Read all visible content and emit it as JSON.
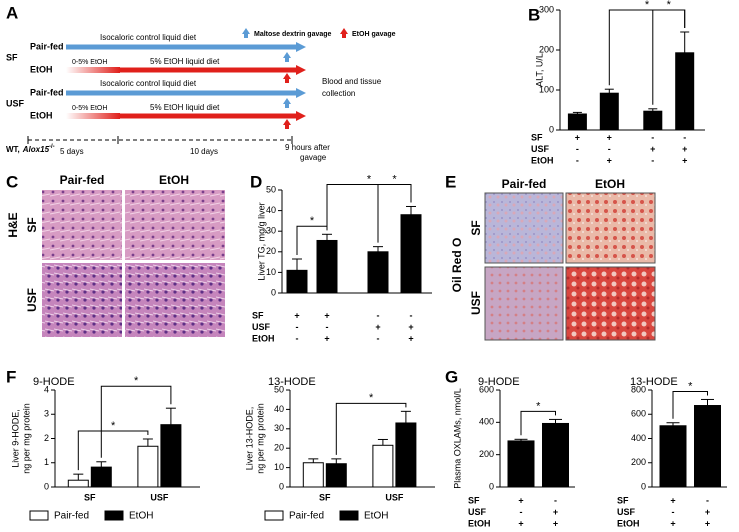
{
  "panel_labels": [
    "A",
    "B",
    "C",
    "D",
    "E",
    "F",
    "G"
  ],
  "diagram": {
    "groups": [
      {
        "label": "SF",
        "arms": [
          {
            "name": "Pair-fed",
            "diet": "Isocaloric control liquid diet"
          },
          {
            "name": "EtOH",
            "ramp": "0-5% EtOH",
            "diet": "5% EtOH liquid diet"
          }
        ]
      },
      {
        "label": "USF",
        "arms": [
          {
            "name": "Pair-fed",
            "diet": "Isocaloric control liquid diet"
          },
          {
            "name": "EtOH",
            "ramp": "0-5% EtOH",
            "diet": "5% EtOH liquid diet"
          }
        ]
      }
    ],
    "legend": [
      "Maltose dextrin gavage",
      "EtOH gavage"
    ],
    "endpoint": [
      "Blood and tissue",
      "collection"
    ],
    "strain": {
      "prefix": "WT,",
      "gene": "Alox15",
      "superscript": "-/-"
    },
    "phases": [
      "5 days",
      "10 days"
    ],
    "final": [
      "9 hours after",
      "gavage"
    ]
  },
  "histology": [
    {
      "stain": "H&E",
      "columns": [
        "Pair-fed",
        "EtOH"
      ],
      "rows": [
        "SF",
        "USF"
      ]
    },
    {
      "stain": "Oil Red O",
      "columns": [
        "Pair-fed",
        "EtOH"
      ],
      "rows": [
        "SF",
        "USF"
      ]
    }
  ],
  "chart_data": [
    {
      "type": "bar",
      "y_label": "ALT, U/L",
      "values": [
        40,
        92,
        47,
        193
      ],
      "errors": [
        4,
        10,
        6,
        52
      ],
      "color": "#000000",
      "ylim": [
        0,
        300
      ],
      "yticks": [
        0,
        100,
        200,
        300
      ],
      "condition_rows": [
        {
          "label": "SF",
          "signs": [
            "+",
            "+",
            "-",
            "-"
          ]
        },
        {
          "label": "USF",
          "signs": [
            "-",
            "-",
            "+",
            "+"
          ]
        },
        {
          "label": "EtOH",
          "signs": [
            "-",
            "+",
            "-",
            "+"
          ]
        }
      ],
      "significance": [
        {
          "from": 1,
          "to": 3,
          "label": "*"
        },
        {
          "from": 2,
          "to": 3,
          "label": "*"
        }
      ]
    },
    {
      "type": "bar",
      "y_label": "Liver TG, mg/g liver",
      "values": [
        11,
        25.5,
        20,
        38
      ],
      "errors": [
        5.5,
        3,
        2.5,
        4
      ],
      "color": "#000000",
      "ylim": [
        0,
        50
      ],
      "yticks": [
        0,
        10,
        20,
        30,
        40,
        50
      ],
      "condition_rows": [
        {
          "label": "SF",
          "signs": [
            "+",
            "+",
            "-",
            "-"
          ]
        },
        {
          "label": "USF",
          "signs": [
            "-",
            "-",
            "+",
            "+"
          ]
        },
        {
          "label": "EtOH",
          "signs": [
            "-",
            "+",
            "-",
            "+"
          ]
        }
      ],
      "significance": [
        {
          "from": 0,
          "to": 1,
          "label": "*"
        },
        {
          "from": 1,
          "to": 3,
          "label": "*"
        },
        {
          "from": 2,
          "to": 3,
          "label": "*"
        }
      ]
    },
    {
      "type": "grouped_bar",
      "title": "9-HODE",
      "y_label": [
        "Liver 9-HODE,",
        "ng per mg protein"
      ],
      "categories": [
        "SF",
        "USF"
      ],
      "series": [
        {
          "name": "Pair-fed",
          "color": "#ffffff",
          "values": [
            0.28,
            1.68
          ],
          "errors": [
            0.25,
            0.3
          ]
        },
        {
          "name": "EtOH",
          "color": "#000000",
          "values": [
            0.82,
            2.57
          ],
          "errors": [
            0.22,
            0.68
          ]
        }
      ],
      "ylim": [
        0,
        4
      ],
      "yticks": [
        0,
        1,
        2,
        3,
        4
      ],
      "significance": [
        {
          "from": [
            0,
            0
          ],
          "to": [
            0,
            1
          ],
          "label": "*"
        },
        {
          "from": [
            1,
            0
          ],
          "to": [
            1,
            1
          ],
          "label": "*"
        }
      ]
    },
    {
      "type": "grouped_bar",
      "title": "13-HODE",
      "y_label": [
        "Liver 13-HODE,",
        "ng per mg protein"
      ],
      "categories": [
        "SF",
        "USF"
      ],
      "series": [
        {
          "name": "Pair-fed",
          "color": "#ffffff",
          "values": [
            12.5,
            21.5
          ],
          "errors": [
            2,
            3
          ]
        },
        {
          "name": "EtOH",
          "color": "#000000",
          "values": [
            12,
            33
          ],
          "errors": [
            2.5,
            6
          ]
        }
      ],
      "ylim": [
        0,
        50
      ],
      "yticks": [
        0,
        10,
        20,
        30,
        40,
        50
      ],
      "significance": [
        {
          "from": [
            1,
            0
          ],
          "to": [
            1,
            1
          ],
          "label": "*"
        }
      ]
    },
    {
      "type": "bar",
      "title": "9-HODE",
      "y_label": "Plasma OXLAMs, nmol/L",
      "values": [
        285,
        393
      ],
      "errors": [
        10,
        25
      ],
      "color": "#000000",
      "ylim": [
        0,
        600
      ],
      "yticks": [
        0,
        200,
        400,
        600
      ],
      "condition_rows": [
        {
          "label": "SF",
          "signs": [
            "+",
            "-"
          ]
        },
        {
          "label": "USF",
          "signs": [
            "-",
            "+"
          ]
        },
        {
          "label": "EtOH",
          "signs": [
            "+",
            "+"
          ]
        }
      ],
      "significance": [
        {
          "from": 0,
          "to": 1,
          "label": "*"
        }
      ]
    },
    {
      "type": "bar",
      "title": "13-HODE",
      "values": [
        505,
        672
      ],
      "errors": [
        25,
        50
      ],
      "color": "#000000",
      "ylim": [
        0,
        800
      ],
      "yticks": [
        0,
        200,
        400,
        600,
        800
      ],
      "condition_rows": [
        {
          "label": "SF",
          "signs": [
            "+",
            "-"
          ]
        },
        {
          "label": "USF",
          "signs": [
            "-",
            "+"
          ]
        },
        {
          "label": "EtOH",
          "signs": [
            "+",
            "+"
          ]
        }
      ],
      "significance": [
        {
          "from": 0,
          "to": 1,
          "label": "*"
        }
      ]
    }
  ]
}
